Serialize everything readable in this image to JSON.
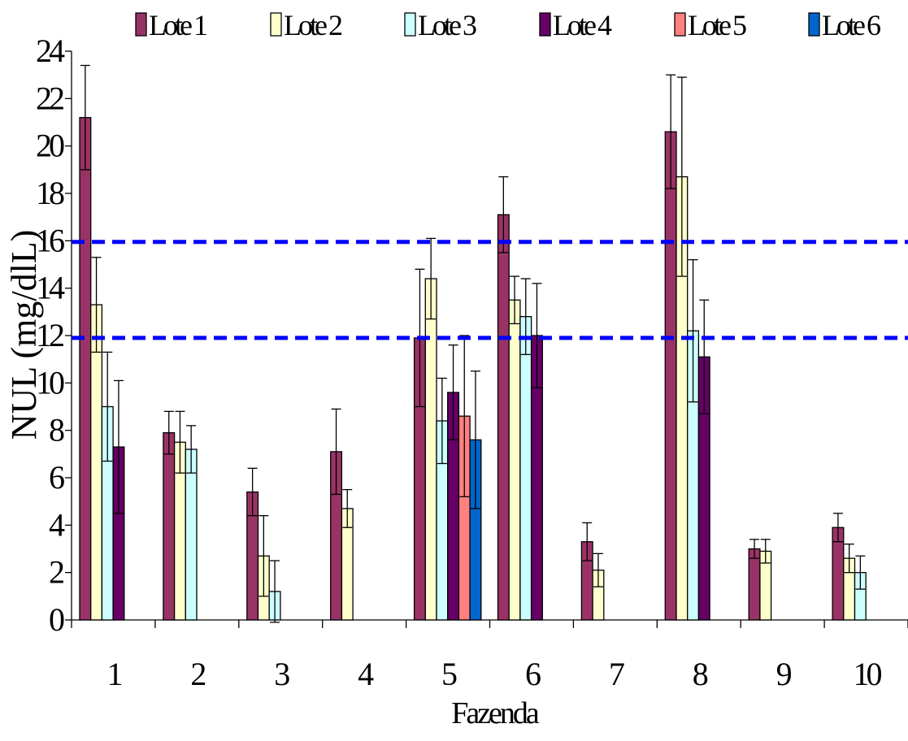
{
  "chart_data": {
    "type": "bar",
    "title": "",
    "xlabel": "Fazenda",
    "ylabel": "NUL (mg/dlL)",
    "ylim": [
      0,
      24
    ],
    "yticks": [
      0,
      2,
      4,
      6,
      8,
      10,
      12,
      14,
      16,
      18,
      20,
      22,
      24
    ],
    "grid": false,
    "legend_position": "top",
    "categories": [
      "1",
      "2",
      "3",
      "4",
      "5",
      "6",
      "7",
      "8",
      "9",
      "10"
    ],
    "series": [
      {
        "name": "Lote 1",
        "color": "#993366",
        "values": [
          21.2,
          7.9,
          5.4,
          7.1,
          11.9,
          17.1,
          3.3,
          20.6,
          3.0,
          3.9
        ],
        "errors": [
          2.2,
          0.9,
          1.0,
          1.8,
          2.9,
          1.6,
          0.8,
          2.4,
          0.4,
          0.6
        ]
      },
      {
        "name": "Lote 2",
        "color": "#FFFFCC",
        "values": [
          13.3,
          7.5,
          2.7,
          4.7,
          14.4,
          13.5,
          2.1,
          18.7,
          2.9,
          2.6
        ],
        "errors": [
          2.0,
          1.3,
          1.7,
          0.8,
          1.7,
          1.0,
          0.7,
          4.2,
          0.5,
          0.6
        ]
      },
      {
        "name": "Lote 3",
        "color": "#CCFFFF",
        "values": [
          9.0,
          7.2,
          1.2,
          null,
          8.4,
          12.8,
          null,
          12.2,
          null,
          2.0
        ],
        "errors": [
          2.3,
          1.0,
          1.3,
          null,
          1.8,
          1.6,
          null,
          3.0,
          null,
          0.7
        ]
      },
      {
        "name": "Lote 4",
        "color": "#660066",
        "values": [
          7.3,
          null,
          null,
          null,
          9.6,
          12.0,
          null,
          11.1,
          null,
          null
        ],
        "errors": [
          2.8,
          null,
          null,
          null,
          2.0,
          2.2,
          null,
          2.4,
          null,
          null
        ]
      },
      {
        "name": "Lote 5",
        "color": "#FF8080",
        "values": [
          null,
          null,
          null,
          null,
          8.6,
          null,
          null,
          null,
          null,
          null
        ],
        "errors": [
          null,
          null,
          null,
          null,
          3.4,
          null,
          null,
          null,
          null,
          null
        ]
      },
      {
        "name": "Lote 6",
        "color": "#0066CC",
        "values": [
          null,
          null,
          null,
          null,
          7.6,
          null,
          null,
          null,
          null,
          null
        ],
        "errors": [
          null,
          null,
          null,
          null,
          2.9,
          null,
          null,
          null,
          null,
          null
        ]
      }
    ],
    "reference_lines": [
      {
        "y": 11.9,
        "color": "#0000FF",
        "style": "dashed"
      },
      {
        "y": 15.95,
        "color": "#0000FF",
        "style": "dashed"
      }
    ]
  }
}
